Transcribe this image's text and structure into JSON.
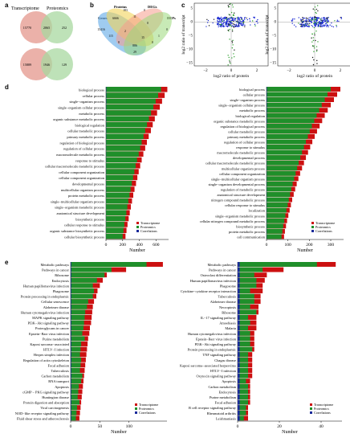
{
  "figure": {
    "panel_labels": [
      "a",
      "b",
      "c",
      "d",
      "e"
    ]
  },
  "panel_a": {
    "set_labels": [
      "Transcriptome",
      "Proteomics"
    ],
    "top_pair": {
      "left": "15770",
      "mid": "2065",
      "right": "252"
    },
    "bottom_pair": {
      "left": "15889",
      "mid": "1946",
      "right": "129"
    },
    "colors": {
      "transcriptome": "#e8a39a",
      "proteomics": "#a8d8a0",
      "overlap": "#c9b98a"
    }
  },
  "panel_b": {
    "set_labels": [
      "Genes",
      "Proteins",
      "DEGs",
      "DEPs"
    ],
    "counts": [
      "15416",
      "6666",
      "183",
      "0",
      "0",
      "11",
      "115",
      "2",
      "0",
      "1",
      "8",
      "15",
      "886",
      "0",
      "29"
    ],
    "colors": [
      "#5fa8e6",
      "#f2d35a",
      "#f59c8c",
      "#9bd97a"
    ]
  },
  "panel_c": {
    "ylabel": "log2 ratio of transcript",
    "xlabel": "log2 ratio of protein",
    "yticks": [
      "5",
      "0",
      "−5",
      "−10",
      "−15"
    ],
    "xticks": [
      "−2",
      "0",
      "2"
    ]
  },
  "panel_d": {
    "xlabel": "Number",
    "legend": [
      "Transcriptome",
      "Proteomics",
      "Correlations"
    ],
    "colors": {
      "transcriptome": "#cc1010",
      "proteomics": "#1f8f2a",
      "correlations": "#1a2a9a"
    },
    "left": {
      "categories": [
        "biological process",
        "cellular process",
        "single−organism process",
        "single−organism cellular process",
        "metabolic process",
        "organic substance metabolic process",
        "biological regulation",
        "cellular metabolic process",
        "primary metabolic process",
        "regulation of biological process",
        "regulation of cellular process",
        "macromolecule metabolic process",
        "response to stimulus",
        "cellular macromolecule metabolic process",
        "cellular component organization",
        "cellular component organization",
        "developmental process",
        "multicellular organism process",
        "protein metabolic process",
        "single−multicellular organism process",
        "single−organism metabolic process",
        "anatomical structure development",
        "biosynthetic process",
        "cellular response to stimulus",
        "organic substance biosynthetic process",
        "cellular biosynthetic process"
      ],
      "transcriptome": [
        735,
        703,
        672,
        645,
        612,
        585,
        560,
        538,
        512,
        490,
        470,
        448,
        428,
        410,
        392,
        376,
        360,
        342,
        327,
        312,
        298,
        285,
        272,
        258,
        246,
        234
      ],
      "proteomics": [
        660,
        625,
        595,
        568,
        540,
        515,
        492,
        470,
        450,
        428,
        410,
        392,
        372,
        355,
        340,
        325,
        310,
        295,
        282,
        268,
        256,
        244,
        232,
        220,
        210,
        200
      ],
      "correlations": [
        4,
        4,
        4,
        3,
        3,
        3,
        3,
        3,
        3,
        2,
        2,
        2,
        2,
        2,
        2,
        2,
        2,
        2,
        2,
        1,
        1,
        1,
        1,
        1,
        1,
        1
      ],
      "xticks": [
        "0",
        "200",
        "400",
        "600"
      ],
      "xmax": 750
    },
    "right": {
      "categories": [
        "biological process",
        "cellular process",
        "single−organism process",
        "single−organism cellular process",
        "metabolic process",
        "biological regulation",
        "organic substance metabolic process",
        "regulation of biological process",
        "cellular metabolic process",
        "primary metabolic process",
        "regulation of cellular process",
        "response to stimulus",
        "macromolecule metabolic process",
        "developmental process",
        "cellular macromolecule metabolic process",
        "multicellular organism process",
        "cellular component organization",
        "single−multicellular organism process",
        "single−organism developmental process",
        "regulation of metabolic process",
        "anatomical structure development",
        "nitrogen compound metabolic process",
        "cellular response to stimulus",
        "localization",
        "single−organism metabolic process",
        "cellular nitrogen compound metabolic process",
        "biosynthetic process",
        "protein metabolic process",
        "cell communication"
      ],
      "transcriptome": [
        345,
        330,
        315,
        300,
        286,
        272,
        260,
        248,
        236,
        225,
        214,
        204,
        194,
        184,
        175,
        166,
        157,
        149,
        141,
        134,
        127,
        120,
        114,
        108,
        102,
        96,
        91,
        86,
        82
      ],
      "proteomics": [
        300,
        285,
        272,
        258,
        246,
        234,
        223,
        212,
        202,
        193,
        184,
        175,
        166,
        158,
        150,
        143,
        136,
        129,
        122,
        116,
        110,
        104,
        99,
        93,
        88,
        83,
        78,
        74,
        70
      ],
      "correlations": [
        2,
        2,
        2,
        2,
        2,
        2,
        2,
        1,
        1,
        1,
        1,
        1,
        1,
        1,
        1,
        1,
        1,
        1,
        1,
        1,
        1,
        1,
        1,
        1,
        1,
        1,
        1,
        1,
        1
      ],
      "xticks": [
        "0",
        "100",
        "200",
        "300"
      ],
      "xmax": 360
    }
  },
  "panel_e": {
    "xlabel": "Number",
    "legend": [
      "Transcriptome",
      "Proteomics",
      "Correlations"
    ],
    "left": {
      "categories": [
        "Metabolic pathways",
        "Pathways in cancer",
        "Ribosome",
        "Endocytosis",
        "Human papillomavirus infection",
        "Phagosome",
        "Protein processing in endoplasmic",
        "Cellular senescence",
        "Alzheimer disease",
        "Human cytomegalovirus infection",
        "MAPK signaling pathway",
        "PI3K−Akt signaling pathway",
        "Proteoglycans in cancer",
        "Epstein−Barr virus infection",
        "Purine metabolism",
        "Kaposi sarcoma−associated",
        "HTLV−I infection",
        "Herpes simplex infection",
        "Regulation of actin cytoskeleton",
        "Focal adhesion",
        "Tuberculosis",
        "Carbon metabolism",
        "RNA transport",
        "Apoptosis",
        "cGMP − PKG signaling pathway",
        "Huntington disease",
        "Protein digestion and absorption",
        "Viral carcinogenesis",
        "NOD−like receptor signaling pathway",
        "Fluid shear stress and atherosclerosis"
      ],
      "transcriptome": [
        158,
        95,
        62,
        55,
        50,
        46,
        44,
        40,
        38,
        37,
        36,
        35,
        33,
        32,
        30,
        29,
        28,
        27,
        26,
        25,
        24,
        23,
        22,
        21,
        20,
        19,
        18,
        17,
        16,
        15
      ],
      "proteomics": [
        130,
        70,
        58,
        45,
        38,
        40,
        38,
        30,
        28,
        25,
        24,
        23,
        22,
        20,
        24,
        18,
        17,
        16,
        18,
        17,
        16,
        20,
        18,
        14,
        13,
        12,
        15,
        11,
        10,
        9
      ],
      "correlations": [
        1,
        1,
        1,
        1,
        1,
        1,
        1,
        1,
        1,
        1,
        1,
        1,
        1,
        1,
        1,
        1,
        1,
        1,
        1,
        1,
        1,
        1,
        1,
        1,
        1,
        1,
        1,
        1,
        1,
        1
      ],
      "xticks": [
        "0",
        "50",
        "100"
      ],
      "xmax": 165
    },
    "right": {
      "categories": [
        "Metabolic pathways",
        "Pathways in cancer",
        "Osteoclast differentiation",
        "Human papillomavirus infection",
        "Phagosome",
        "Cytokine−cytokine receptor interaction",
        "Tuberculosis",
        "Alzheimer disease",
        "Necroptosis",
        "Ribosome",
        "IL−17 signaling pathway",
        "Amoebiasis",
        "Malaria",
        "Human cytomegalovirus infection",
        "Epstein−Barr virus infection",
        "PI3K−Akt signaling pathway",
        "Protein processing in endoplasmic",
        "TNF signaling pathway",
        "Chagas disease",
        "Kaposi sarcoma−associated herpesvirus",
        "HTLV−I infection",
        "Oxytocin signaling pathway",
        "Apoptosis",
        "Carbon metabolism",
        "Endocytosis",
        "Purine metabolism",
        "Focal adhesion",
        "B cell receptor signaling pathway",
        "Rheumatoid arthritis",
        "Leishmaniasis"
      ],
      "transcriptome": [
        47,
        22,
        14,
        13,
        12,
        12,
        11,
        11,
        10,
        10,
        9,
        9,
        9,
        8,
        8,
        8,
        8,
        7,
        7,
        7,
        7,
        7,
        6,
        6,
        6,
        6,
        6,
        5,
        5,
        5
      ],
      "proteomics": [
        38,
        12,
        8,
        9,
        9,
        6,
        8,
        8,
        6,
        9,
        5,
        6,
        5,
        6,
        6,
        6,
        7,
        5,
        5,
        5,
        5,
        5,
        4,
        5,
        5,
        5,
        5,
        4,
        4,
        3
      ],
      "correlations": [
        1,
        1,
        1,
        1,
        1,
        1,
        1,
        1,
        1,
        1,
        1,
        1,
        1,
        1,
        1,
        1,
        1,
        1,
        1,
        1,
        1,
        1,
        1,
        1,
        1,
        1,
        1,
        1,
        1,
        1
      ],
      "xticks": [
        "0",
        "20",
        "40"
      ],
      "xmax": 50
    }
  }
}
